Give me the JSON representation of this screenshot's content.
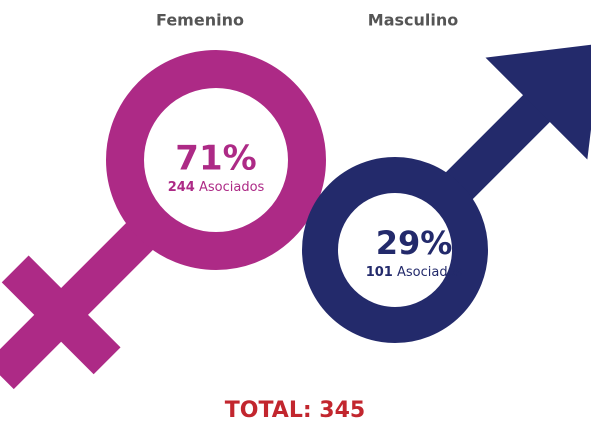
{
  "groups": [
    {
      "label": "Femenino",
      "percent": "71%",
      "count": "244",
      "unit": "Asociados"
    },
    {
      "label": "Masculino",
      "percent": "29%",
      "count": "101",
      "unit": "Asociados"
    }
  ],
  "total": "TOTAL: 345"
}
